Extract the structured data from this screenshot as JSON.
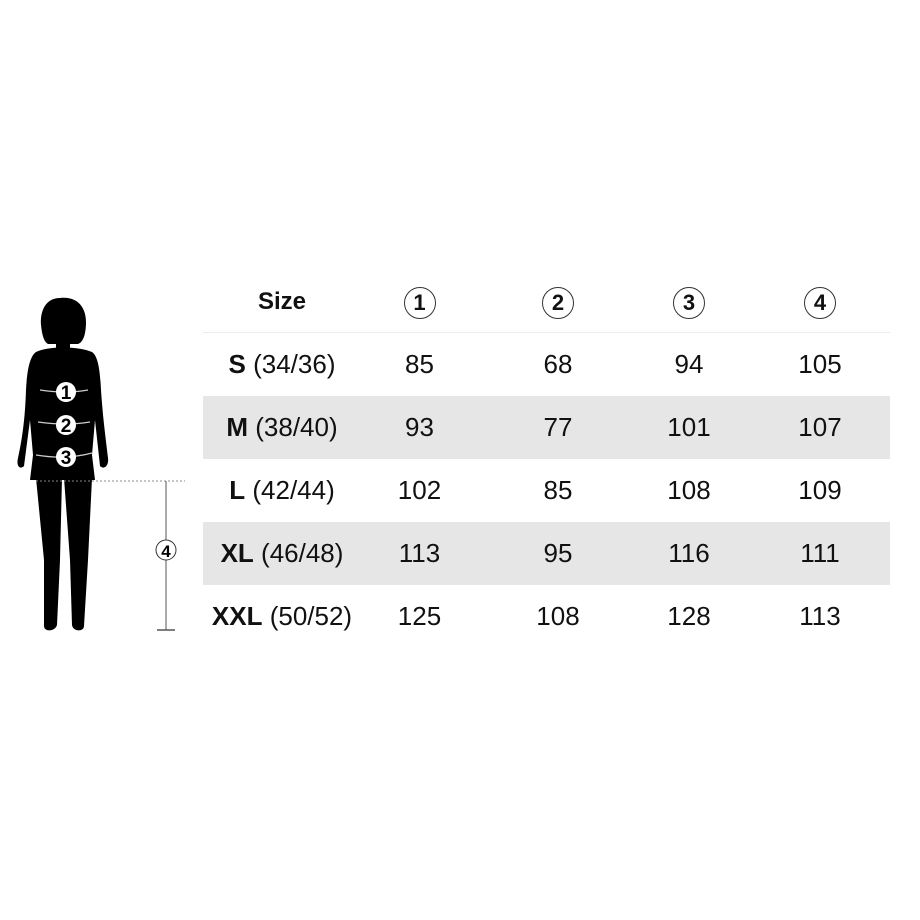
{
  "table": {
    "header": {
      "size_label": "Size",
      "columns": [
        "1",
        "2",
        "3",
        "4"
      ]
    },
    "rows": [
      {
        "size": "S",
        "eu": "(34/36)",
        "values": [
          "85",
          "68",
          "94",
          "105"
        ]
      },
      {
        "size": "M",
        "eu": "(38/40)",
        "values": [
          "93",
          "77",
          "101",
          "107"
        ]
      },
      {
        "size": "L",
        "eu": "(42/44)",
        "values": [
          "102",
          "85",
          "108",
          "109"
        ]
      },
      {
        "size": "XL",
        "eu": "(46/48)",
        "values": [
          "113",
          "95",
          "116",
          "111"
        ]
      },
      {
        "size": "XXL",
        "eu": "(50/52)",
        "values": [
          "125",
          "108",
          "128",
          "113"
        ]
      }
    ],
    "stripe_color": "#e6e6e6"
  },
  "figure": {
    "markers": [
      "1",
      "2",
      "3",
      "4"
    ]
  }
}
